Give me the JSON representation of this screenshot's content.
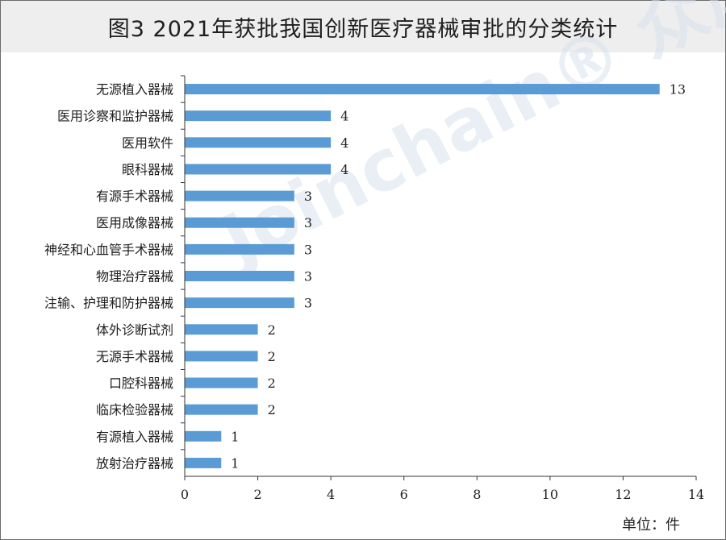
{
  "title": "图3  2021年获批我国创新医疗器械审批的分类统计",
  "unit_label": "单位：件",
  "watermark": "Joinchain® 众成",
  "colors": {
    "bar": "#5b9bd5",
    "axis": "#333333",
    "title_bg": "#eeeeee"
  },
  "chart_data": {
    "type": "bar",
    "orientation": "horizontal",
    "categories": [
      "无源植入器械",
      "医用诊察和监护器械",
      "医用软件",
      "眼科器械",
      "有源手术器械",
      "医用成像器械",
      "神经和心血管手术器械",
      "物理治疗器械",
      "注输、护理和防护器械",
      "体外诊断试剂",
      "无源手术器械",
      "口腔科器械",
      "临床检验器械",
      "有源植入器械",
      "放射治疗器械"
    ],
    "values": [
      13,
      4,
      4,
      4,
      3,
      3,
      3,
      3,
      3,
      2,
      2,
      2,
      2,
      1,
      1
    ],
    "xlim": [
      0,
      14
    ],
    "xticks": [
      0,
      2,
      4,
      6,
      8,
      10,
      12,
      14
    ],
    "data_labels": true,
    "grid": false,
    "legend": "none"
  }
}
